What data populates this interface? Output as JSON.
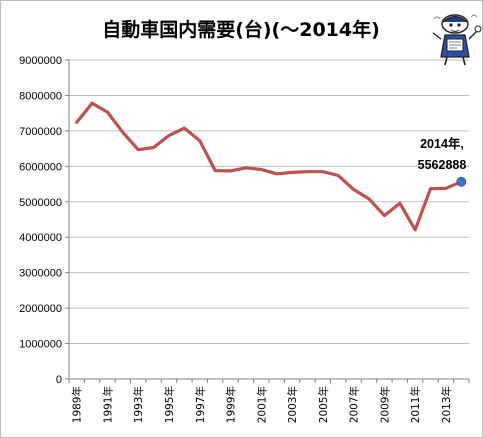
{
  "chart_data": {
    "type": "line",
    "title": "自動車国内需要(台)(〜2014年)",
    "xlabel": "",
    "ylabel": "",
    "ylim": [
      0,
      9000000
    ],
    "yticks": [
      0,
      1000000,
      2000000,
      3000000,
      4000000,
      5000000,
      6000000,
      7000000,
      8000000,
      9000000
    ],
    "ytick_labels": [
      "0",
      "1000000",
      "2000000",
      "3000000",
      "4000000",
      "5000000",
      "6000000",
      "7000000",
      "8000000",
      "9000000"
    ],
    "grid": true,
    "legend": "none",
    "x": [
      "1989年",
      "1990年",
      "1991年",
      "1992年",
      "1993年",
      "1994年",
      "1995年",
      "1996年",
      "1997年",
      "1998年",
      "1999年",
      "2000年",
      "2001年",
      "2002年",
      "2003年",
      "2004年",
      "2005年",
      "2006年",
      "2007年",
      "2008年",
      "2009年",
      "2010年",
      "2011年",
      "2012年",
      "2013年",
      "2014年"
    ],
    "xtick_labels": [
      "1989年",
      "1991年",
      "1993年",
      "1995年",
      "1997年",
      "1999年",
      "2001年",
      "2003年",
      "2005年",
      "2007年",
      "2009年",
      "2011年",
      "2013年"
    ],
    "series": [
      {
        "values": [
          7240000,
          7780000,
          7530000,
          6960000,
          6470000,
          6530000,
          6870000,
          7080000,
          6720000,
          5880000,
          5870000,
          5960000,
          5910000,
          5790000,
          5830000,
          5850000,
          5850000,
          5740000,
          5350000,
          5080000,
          4610000,
          4960000,
          4210000,
          5370000,
          5380000,
          5562888
        ],
        "color": "#c0504d"
      }
    ],
    "annotation": {
      "year_label": "2014年,",
      "value_label": "5562888",
      "marker_color": "#4472c4"
    }
  }
}
